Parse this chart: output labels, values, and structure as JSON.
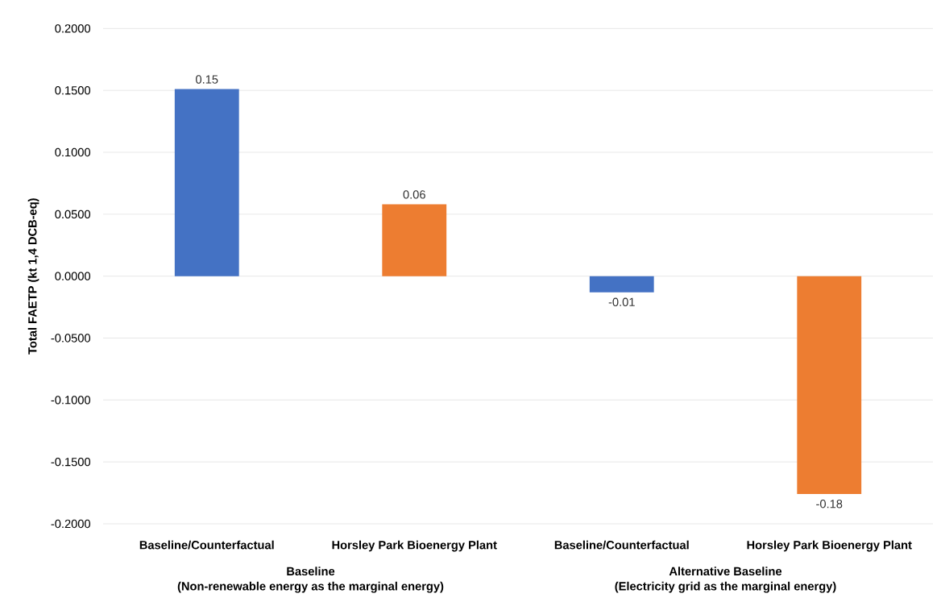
{
  "chart_data": {
    "type": "bar",
    "ylabel": "Total FAETP (kt 1,4 DCB-eq)",
    "categories": [
      "Baseline/Counterfactual",
      "Horsley Park Bioenergy Plant",
      "Baseline/Counterfactual",
      "Horsley Park Bioenergy Plant"
    ],
    "values": [
      0.151,
      0.058,
      -0.013,
      -0.176
    ],
    "colors": [
      "#4472c4",
      "#ed7d31",
      "#4472c4",
      "#ed7d31"
    ],
    "value_labels": [
      "0.15",
      "0.06",
      "-0.01",
      "-0.18"
    ],
    "ylim": [
      -0.2,
      0.2
    ],
    "yticks": [
      {
        "value": -0.2,
        "label": "-0.2000"
      },
      {
        "value": -0.15,
        "label": "-0.1500"
      },
      {
        "value": -0.1,
        "label": "-0.1000"
      },
      {
        "value": -0.05,
        "label": "-0.0500"
      },
      {
        "value": 0,
        "label": "0.0000"
      },
      {
        "value": 0.05,
        "label": "0.0500"
      },
      {
        "value": 0.1,
        "label": "0.1000"
      },
      {
        "value": 0.15,
        "label": "0.1500"
      },
      {
        "value": 0.2,
        "label": "0.2000"
      }
    ],
    "grid": "y",
    "annotations": [
      "Baseline",
      "(Non-renewable energy as the marginal energy)",
      "Alternative Baseline",
      "(Electricity grid as the marginal energy)"
    ]
  }
}
